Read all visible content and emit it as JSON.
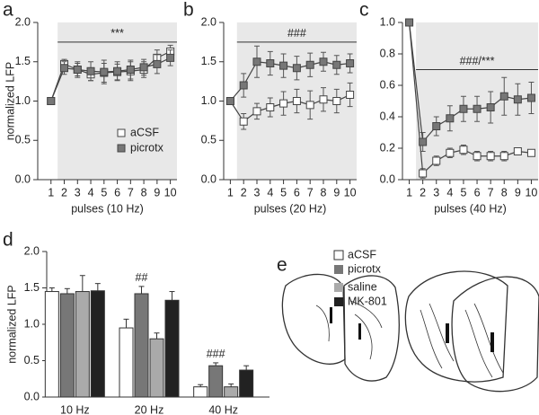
{
  "chart_data": [
    {
      "type": "line",
      "panel": "a",
      "x_label": "pulses (10 Hz)",
      "y_label": "normalized LFP",
      "x": [
        1,
        2,
        3,
        4,
        5,
        6,
        7,
        8,
        9,
        10
      ],
      "xlim": [
        0,
        10.5
      ],
      "xticks": [
        1,
        2,
        3,
        4,
        5,
        6,
        7,
        8,
        9,
        10
      ],
      "ylim": [
        0,
        2
      ],
      "yticks": [
        {
          "value": 0,
          "label": "0.0"
        },
        {
          "value": 0.5,
          "label": "0.5"
        },
        {
          "value": 1,
          "label": "1.0"
        },
        {
          "value": 1.5,
          "label": "1.5"
        },
        {
          "value": 2,
          "label": "2.0"
        }
      ],
      "annotation": {
        "text": "***",
        "y": 1.75
      },
      "legend": "lower right",
      "series": [
        {
          "name": "aCSF",
          "color": "#ffffff",
          "values": [
            1.0,
            1.47,
            1.4,
            1.34,
            1.36,
            1.37,
            1.38,
            1.4,
            1.55,
            1.63
          ],
          "errors": [
            0,
            0.06,
            0.08,
            0.08,
            0.12,
            0.1,
            0.12,
            0.1,
            0.1,
            0.08
          ]
        },
        {
          "name": "picrotx",
          "color": "#777777",
          "values": [
            1.0,
            1.42,
            1.4,
            1.38,
            1.37,
            1.38,
            1.4,
            1.43,
            1.47,
            1.55
          ],
          "errors": [
            0,
            0.08,
            0.1,
            0.12,
            0.15,
            0.12,
            0.12,
            0.1,
            0.12,
            0.1
          ]
        }
      ]
    },
    {
      "type": "line",
      "panel": "b",
      "x_label": "pulses (20 Hz)",
      "x": [
        1,
        2,
        3,
        4,
        5,
        6,
        7,
        8,
        9,
        10
      ],
      "xlim": [
        0.5,
        10.5
      ],
      "xticks": [
        1,
        2,
        3,
        4,
        5,
        6,
        7,
        8,
        9,
        10
      ],
      "ylim": [
        0,
        2
      ],
      "yticks": [
        {
          "value": 0,
          "label": "0.0"
        },
        {
          "value": 0.5,
          "label": "0.5"
        },
        {
          "value": 1,
          "label": "1.0"
        },
        {
          "value": 1.5,
          "label": "1.5"
        },
        {
          "value": 2,
          "label": "2.0"
        }
      ],
      "annotation": {
        "text": "###",
        "y": 1.75
      },
      "series": [
        {
          "name": "aCSF",
          "color": "#ffffff",
          "values": [
            1.0,
            0.74,
            0.87,
            0.92,
            0.97,
            1.0,
            0.95,
            1.02,
            1.0,
            1.08
          ],
          "errors": [
            0,
            0.1,
            0.1,
            0.12,
            0.15,
            0.15,
            0.18,
            0.15,
            0.15,
            0.15
          ]
        },
        {
          "name": "picrotx",
          "color": "#777777",
          "values": [
            1.0,
            1.2,
            1.5,
            1.48,
            1.45,
            1.42,
            1.46,
            1.5,
            1.46,
            1.48
          ],
          "errors": [
            0,
            0.15,
            0.2,
            0.15,
            0.15,
            0.15,
            0.15,
            0.12,
            0.12,
            0.12
          ]
        }
      ]
    },
    {
      "type": "line",
      "panel": "c",
      "x_label": "pulses (40 Hz)",
      "x": [
        1,
        2,
        3,
        4,
        5,
        6,
        7,
        8,
        9,
        10
      ],
      "xlim": [
        0.5,
        10.5
      ],
      "xticks": [
        1,
        2,
        3,
        4,
        5,
        6,
        7,
        8,
        9,
        10
      ],
      "ylim": [
        0,
        1
      ],
      "yticks": [
        {
          "value": 0,
          "label": "0.0"
        },
        {
          "value": 0.2,
          "label": "0.2"
        },
        {
          "value": 0.4,
          "label": "0.4"
        },
        {
          "value": 0.6,
          "label": "0.6"
        },
        {
          "value": 0.8,
          "label": "0.8"
        },
        {
          "value": 1,
          "label": "1.0"
        }
      ],
      "annotation": {
        "text": "###/***",
        "y": 0.7
      },
      "series": [
        {
          "name": "aCSF",
          "color": "#ffffff",
          "values": [
            1.0,
            0.04,
            0.12,
            0.17,
            0.19,
            0.15,
            0.15,
            0.15,
            0.18,
            0.17
          ],
          "errors": [
            0,
            0.03,
            0.03,
            0.03,
            0.03,
            0.03,
            0.03,
            0.03,
            0.02,
            0.02
          ]
        },
        {
          "name": "picrotx",
          "color": "#777777",
          "values": [
            1.0,
            0.24,
            0.34,
            0.39,
            0.45,
            0.45,
            0.46,
            0.53,
            0.51,
            0.52
          ],
          "errors": [
            0,
            0.06,
            0.06,
            0.08,
            0.08,
            0.08,
            0.1,
            0.12,
            0.1,
            0.1
          ]
        }
      ]
    },
    {
      "type": "bar",
      "panel": "d",
      "y_label": "normalized LFP",
      "categories": [
        "10 Hz",
        "20 Hz",
        "40 Hz"
      ],
      "ylim": [
        0,
        2
      ],
      "yticks": [
        {
          "value": 0,
          "label": "0.0"
        },
        {
          "value": 0.5,
          "label": "0.5"
        },
        {
          "value": 1,
          "label": "1.0"
        },
        {
          "value": 1.5,
          "label": "1.5"
        },
        {
          "value": 2,
          "label": "2.0"
        }
      ],
      "legend": "right",
      "annotations": [
        {
          "text": "##",
          "category": 1,
          "series": 1
        },
        {
          "text": "###",
          "category": 2,
          "series": 1
        }
      ],
      "series": [
        {
          "name": "aCSF",
          "color": "#ffffff",
          "values": [
            1.45,
            0.95,
            0.14
          ],
          "errors": [
            0.05,
            0.12,
            0.03
          ]
        },
        {
          "name": "picrotx",
          "color": "#777777",
          "values": [
            1.42,
            1.42,
            0.43
          ],
          "errors": [
            0.07,
            0.1,
            0.04
          ]
        },
        {
          "name": "saline",
          "color": "#aaaaaa",
          "values": [
            1.45,
            0.8,
            0.14
          ],
          "errors": [
            0.22,
            0.08,
            0.04
          ]
        },
        {
          "name": "MK-801",
          "color": "#222222",
          "values": [
            1.46,
            1.33,
            0.37
          ],
          "errors": [
            0.1,
            0.12,
            0.06
          ]
        }
      ]
    }
  ],
  "panel_e": {
    "panel": "e"
  }
}
